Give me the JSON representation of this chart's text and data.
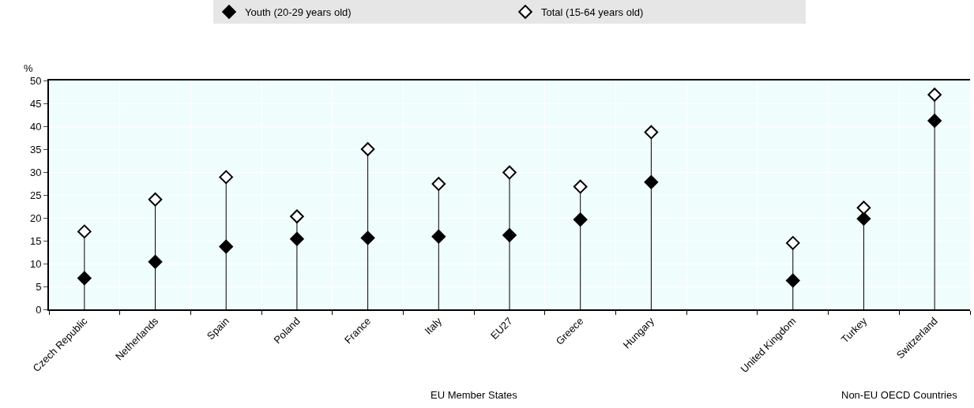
{
  "chart_data": {
    "type": "lollipop",
    "ylabel": "%",
    "ylim": [
      0,
      50
    ],
    "yticks": [
      0,
      5,
      10,
      15,
      20,
      25,
      30,
      35,
      40,
      45,
      50
    ],
    "grid": true,
    "legend": "top",
    "marker": "diamond",
    "categories": [
      "Czech Republic",
      "Netherlands",
      "Spain",
      "Poland",
      "France",
      "Italy",
      "EU27",
      "Greece",
      "Hungary",
      null,
      "United Kingdom",
      "Turkey",
      "Switzerland"
    ],
    "series": [
      {
        "name": "Youth (20-29 years old)",
        "type": "scatter",
        "color": "#000000",
        "values": [
          6.8,
          10.4,
          13.7,
          15.4,
          15.6,
          15.9,
          16.2,
          19.6,
          27.8,
          null,
          6.3,
          19.8,
          41.2
        ]
      },
      {
        "name": "Total (15-64 years old)",
        "color": "#ffffff",
        "values": [
          17.0,
          24.0,
          28.9,
          20.3,
          35.0,
          27.4,
          29.9,
          26.8,
          38.7,
          null,
          14.5,
          22.2,
          46.9
        ]
      }
    ],
    "annotations": [
      "EU Member States",
      "Non-EU OECD Countries"
    ]
  }
}
